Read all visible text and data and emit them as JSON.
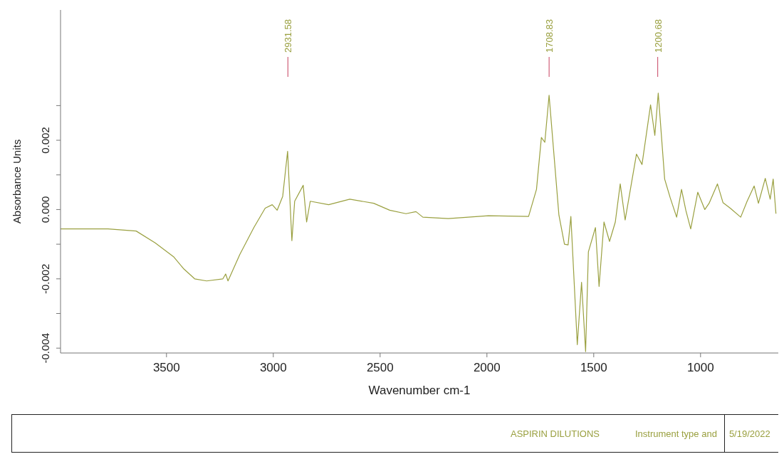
{
  "chart_data": {
    "type": "line",
    "xlabel": "Wavenumber cm-1",
    "ylabel": "Absorbance Units",
    "x": [
      3996,
      3774,
      3642,
      3553,
      3467,
      3421,
      3368,
      3312,
      3236,
      3223,
      3212,
      3157,
      3091,
      3038,
      3005,
      2982,
      2956,
      2933,
      2913,
      2900,
      2860,
      2844,
      2827,
      2741,
      2642,
      2530,
      2455,
      2379,
      2332,
      2300,
      2181,
      1993,
      1805,
      1768,
      1745,
      1729,
      1709,
      1663,
      1637,
      1620,
      1607,
      1577,
      1557,
      1538,
      1525,
      1492,
      1475,
      1452,
      1426,
      1399,
      1376,
      1353,
      1300,
      1274,
      1234,
      1214,
      1198,
      1168,
      1142,
      1112,
      1089,
      1069,
      1046,
      1013,
      980,
      960,
      921,
      895,
      861,
      812,
      782,
      749,
      729,
      697,
      674,
      660,
      647
    ],
    "series": [
      {
        "color": "#9aa040",
        "values": [
          -0.00056,
          -0.00056,
          -0.00062,
          -0.00096,
          -0.00136,
          -0.0017,
          -0.002,
          -0.00206,
          -0.002,
          -0.00186,
          -0.00206,
          -0.0013,
          -0.00052,
          4e-05,
          0.00014,
          -2e-05,
          0.00038,
          0.00168,
          -0.0009,
          0.00024,
          0.0007,
          -0.00036,
          0.00024,
          0.00014,
          0.0003,
          0.00018,
          -2e-05,
          -0.00012,
          -6e-05,
          -0.00022,
          -0.00026,
          -0.00018,
          -0.0002,
          0.00058,
          0.00208,
          0.00194,
          0.0033,
          -0.00016,
          -0.001,
          -0.00102,
          -0.0002,
          -0.0039,
          -0.0021,
          -0.0041,
          -0.00122,
          -0.00052,
          -0.00222,
          -0.00036,
          -0.00092,
          -0.00036,
          0.00074,
          -0.0003,
          0.0016,
          0.0013,
          0.00302,
          0.00214,
          0.00336,
          0.00088,
          0.00034,
          -0.00022,
          0.00058,
          -2e-05,
          -0.00056,
          0.0005,
          0,
          0.00018,
          0.00074,
          0.0002,
          4e-05,
          -0.00022,
          0.00024,
          0.00068,
          0.00018,
          0.0009,
          0.0003,
          0.00088,
          -0.00012
        ]
      }
    ],
    "xlim": [
      3996,
      636
    ],
    "xticks": [
      3500,
      3000,
      2500,
      2000,
      1500,
      1000
    ],
    "ylim": [
      -0.00414,
      0.00576
    ],
    "yticks": [
      {
        "value": -0.004,
        "label": "-0.004"
      },
      {
        "value": -0.003,
        "label": null
      },
      {
        "value": -0.002,
        "label": "-0.002"
      },
      {
        "value": -0.001,
        "label": null
      },
      {
        "value": 0,
        "label": "0.000"
      },
      {
        "value": 0.001,
        "label": null
      },
      {
        "value": 0.002,
        "label": "0.002"
      },
      {
        "value": 0.003,
        "label": null
      }
    ],
    "grid": false,
    "annotations": [
      {
        "text": "2931.58",
        "x": 2931.58
      },
      {
        "text": "1708.83",
        "x": 1708.83
      },
      {
        "text": "1200.68",
        "x": 1200.68
      },
      "ASPIRIN DILUTIONS",
      "Instrument type and",
      "5/19/2022"
    ]
  }
}
